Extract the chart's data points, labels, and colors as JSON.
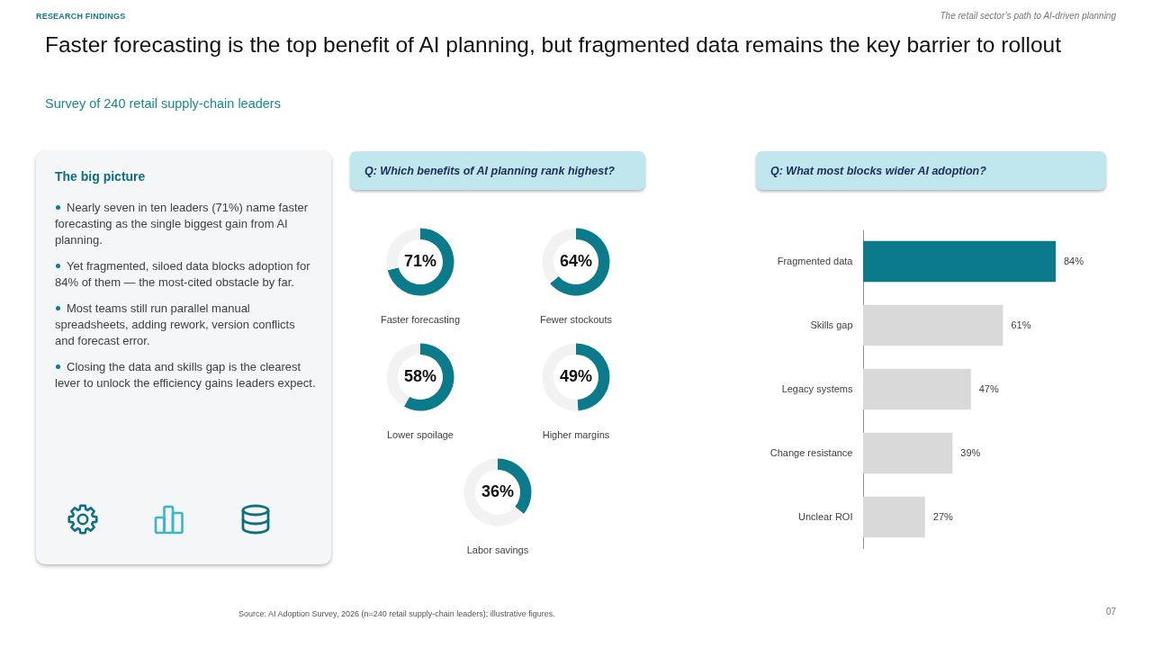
{
  "chart_data": [
    {
      "type": "other",
      "title": "Faster forecasting is the top benefit of AI planning, but fragmented data remains the key barrier to rollout",
      "subtitle": "Survey of 240 retail supply-chain leaders",
      "annotations": [
        "RESEARCH FINDINGS",
        "The retail sector’s path to AI-driven planning",
        "Q: Which benefits of AI planning rank highest?",
        "Source: AI Adoption Survey, 2026 (n=240 retail supply-chain leaders); illustrative figures.",
        "07"
      ]
    },
    {
      "type": "other",
      "title": "The big picture",
      "annotations": [
        "Nearly seven in ten leaders (71%) name faster forecasting as the single biggest gain from AI planning.",
        "Yet fragmented, siloed data blocks adoption for 84% of them — the most-cited obstacle by far.",
        "Most teams still run parallel manual spreadsheets, adding rework, version conflicts and forecast error.",
        "Closing the data and skills gap is the clearest lever to unlock the efficiency gains leaders expect."
      ]
    },
    {
      "type": "donut",
      "title": "Faster forecasting",
      "categories": [
        null,
        null
      ],
      "values": [
        71,
        29
      ],
      "colors": [
        "#0b7a8b",
        "#f2f2f2"
      ],
      "value_labels": [
        "71%",
        null
      ]
    },
    {
      "type": "donut",
      "title": "Fewer stockouts",
      "categories": [
        null,
        null
      ],
      "values": [
        64,
        36
      ],
      "colors": [
        "#0b7a8b",
        "#f2f2f2"
      ],
      "value_labels": [
        "64%",
        null
      ]
    },
    {
      "type": "donut",
      "title": "Lower spoilage",
      "categories": [
        null,
        null
      ],
      "values": [
        58,
        42
      ],
      "colors": [
        "#0b7a8b",
        "#f2f2f2"
      ],
      "value_labels": [
        "58%",
        null
      ]
    },
    {
      "type": "donut",
      "title": "Higher margins",
      "categories": [
        null,
        null
      ],
      "values": [
        49,
        51
      ],
      "colors": [
        "#0b7a8b",
        "#f2f2f2"
      ],
      "value_labels": [
        "49%",
        null
      ]
    },
    {
      "type": "donut",
      "title": "Labor savings",
      "categories": [
        null,
        null
      ],
      "values": [
        36,
        64
      ],
      "colors": [
        "#0b7a8b",
        "#f2f2f2"
      ],
      "value_labels": [
        "36%",
        null
      ]
    },
    {
      "type": "bar",
      "orientation": "horizontal",
      "title": "Q: What most blocks wider AI adoption?",
      "categories": [
        "Fragmented data",
        "Skills gap",
        "Legacy systems",
        "Change resistance",
        "Unclear ROI"
      ],
      "values": [
        84,
        61,
        47,
        39,
        27
      ],
      "colors": [
        "#0b7a8b",
        "#d9d9d9",
        "#d9d9d9",
        "#d9d9d9",
        "#d9d9d9"
      ],
      "value_labels": [
        "84%",
        "61%",
        "47%",
        "39%",
        "27%"
      ]
    }
  ]
}
